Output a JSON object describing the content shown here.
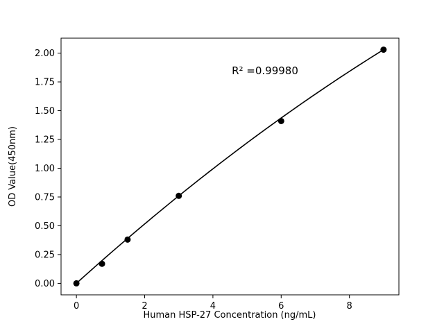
{
  "chart_data": {
    "type": "scatter",
    "title": "",
    "xlabel": "Human HSP-27 Concentration (ng/mL)",
    "ylabel": "OD Value(450nm)",
    "annotation": "R² =0.99980",
    "x": [
      0,
      0.75,
      1.5,
      3,
      6,
      9
    ],
    "y": [
      0.0,
      0.17,
      0.38,
      0.76,
      1.41,
      2.03
    ],
    "fit": {
      "type": "quadratic",
      "a": -0.00463,
      "b": 0.2672,
      "c": 0.0,
      "x_start": 0,
      "x_end": 9
    },
    "x_ticks": [
      0,
      2,
      4,
      6,
      8
    ],
    "y_ticks": [
      0.0,
      0.25,
      0.5,
      0.75,
      1.0,
      1.25,
      1.5,
      1.75,
      2.0
    ],
    "xlim": [
      -0.45,
      9.45
    ],
    "ylim": [
      -0.1,
      2.13
    ],
    "grid": false,
    "legend": "none",
    "marker_color": "#000000",
    "line_color": "#000000",
    "axis_color": "#000000",
    "background": "#ffffff"
  }
}
